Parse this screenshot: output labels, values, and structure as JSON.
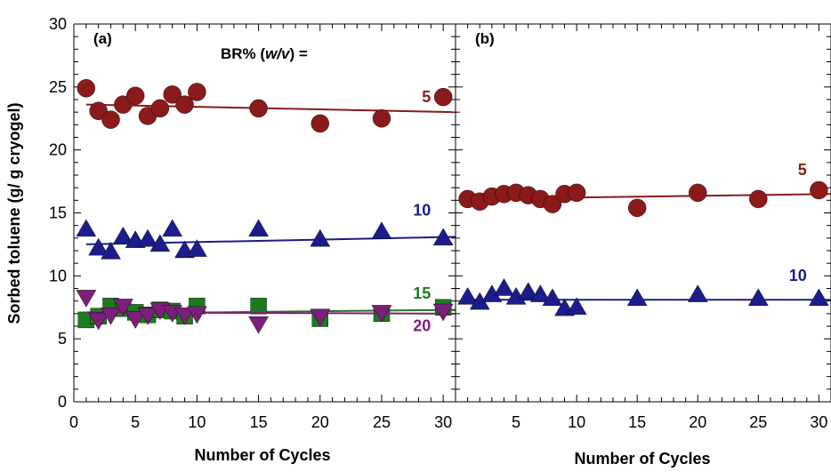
{
  "chart_data": [
    {
      "type": "scatter",
      "panel": "(a)",
      "title": "",
      "xlabel": "Number of Cycles",
      "ylabel": "Sorbed toluene  (g/ g cryogel)",
      "xlim": [
        0,
        31
      ],
      "ylim": [
        0,
        30
      ],
      "xticks": [
        0,
        5,
        10,
        15,
        20,
        25,
        30
      ],
      "yticks": [
        0,
        5,
        10,
        15,
        20,
        25,
        30
      ],
      "grid": false,
      "legend_title_prefix": "BR% (",
      "legend_title_italic": "w/v",
      "legend_title_suffix": ") =",
      "series": [
        {
          "name": "5",
          "marker": "circle",
          "color": "#8b1a1a",
          "x": [
            1,
            2,
            3,
            4,
            5,
            6,
            7,
            8,
            9,
            10,
            15,
            20,
            25,
            30
          ],
          "y": [
            24.9,
            23.1,
            22.4,
            23.6,
            24.3,
            22.7,
            23.3,
            24.4,
            23.6,
            24.6,
            23.3,
            22.1,
            22.5,
            24.2
          ],
          "fit": [
            23.6,
            23.0
          ]
        },
        {
          "name": "10",
          "marker": "triangle-up",
          "color": "#1c1c8c",
          "x": [
            1,
            2,
            3,
            4,
            5,
            6,
            7,
            8,
            9,
            10,
            15,
            20,
            25,
            30
          ],
          "y": [
            13.7,
            12.2,
            11.9,
            13.1,
            12.8,
            12.9,
            12.5,
            13.7,
            12.0,
            12.1,
            13.7,
            12.9,
            13.5,
            13.0
          ],
          "fit": [
            12.5,
            13.1
          ]
        },
        {
          "name": "15",
          "marker": "square",
          "color": "#1e7a1e",
          "x": [
            1,
            2,
            3,
            4,
            5,
            6,
            7,
            8,
            9,
            10,
            15,
            20,
            25,
            30
          ],
          "y": [
            6.5,
            6.8,
            7.6,
            7.4,
            7.1,
            6.9,
            7.3,
            7.2,
            6.8,
            7.6,
            7.6,
            6.6,
            7.0,
            7.5
          ],
          "fit": [
            7.0,
            7.3
          ]
        },
        {
          "name": "20",
          "marker": "triangle-down",
          "color": "#7b1f7b",
          "x": [
            1,
            2,
            3,
            4,
            5,
            6,
            7,
            8,
            9,
            10,
            15,
            20,
            25,
            30
          ],
          "y": [
            8.3,
            6.5,
            6.9,
            7.6,
            6.6,
            6.9,
            7.3,
            7.1,
            6.9,
            7.0,
            6.2,
            6.8,
            7.1,
            7.2
          ],
          "fit": [
            7.1,
            7.0
          ]
        }
      ]
    },
    {
      "type": "scatter",
      "panel": "(b)",
      "title": "",
      "xlabel": "Number of Cycles",
      "ylabel": "",
      "xlim": [
        0,
        31
      ],
      "ylim": [
        0,
        30
      ],
      "xticks": [
        5,
        10,
        15,
        20,
        25,
        30
      ],
      "grid": false,
      "series": [
        {
          "name": "5",
          "marker": "circle",
          "color": "#8b1a1a",
          "x": [
            1,
            2,
            3,
            4,
            5,
            6,
            7,
            8,
            9,
            10,
            15,
            20,
            25,
            30
          ],
          "y": [
            16.1,
            15.9,
            16.3,
            16.5,
            16.6,
            16.4,
            16.1,
            15.7,
            16.5,
            16.6,
            15.4,
            16.6,
            16.1,
            16.8
          ],
          "fit": [
            16.1,
            16.5
          ]
        },
        {
          "name": "10",
          "marker": "triangle-up",
          "color": "#1c1c8c",
          "x": [
            1,
            2,
            3,
            4,
            5,
            6,
            7,
            8,
            9,
            10,
            15,
            20,
            25,
            30
          ],
          "y": [
            8.3,
            7.9,
            8.5,
            9.0,
            8.3,
            8.7,
            8.5,
            8.2,
            7.4,
            7.5,
            8.2,
            8.5,
            8.2,
            8.2
          ],
          "fit": [
            8.1,
            8.1
          ]
        }
      ]
    }
  ]
}
